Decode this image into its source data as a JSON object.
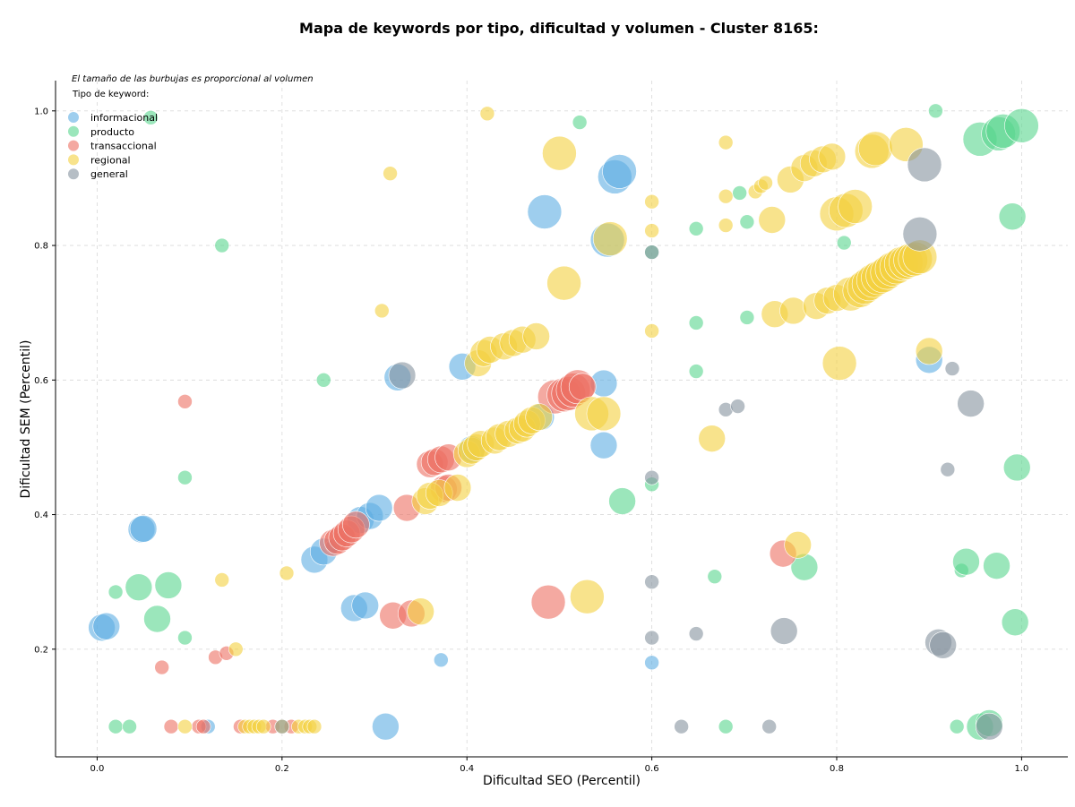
{
  "chart_data": {
    "type": "scatter",
    "title": "Mapa de keywords por tipo, dificultad y volumen - Cluster 8165:",
    "xlabel": "Dificultad SEO (Percentil)",
    "ylabel": "Dificultad SEM (Percentil)",
    "xlim": [
      -0.045,
      1.05
    ],
    "ylim": [
      0.04,
      1.045
    ],
    "xticks": [
      0.0,
      0.2,
      0.4,
      0.6,
      0.8,
      1.0
    ],
    "xtick_labels": [
      "0.0",
      "0.2",
      "0.4",
      "0.6",
      "0.8",
      "1.0"
    ],
    "yticks": [
      0.2,
      0.4,
      0.6,
      0.8,
      1.0
    ],
    "ytick_labels": [
      "0.2",
      "0.4",
      "0.6",
      "0.8",
      "1.0"
    ],
    "grid": true,
    "note": "El tamaño de las burbujas es proporcional al volumen",
    "legend_title": "Tipo de keyword:",
    "legend_position": "top-left",
    "series": [
      {
        "name": "informacional",
        "color": "#5DADE2",
        "points": [
          [
            0.005,
            0.232,
            2
          ],
          [
            0.01,
            0.234,
            2
          ],
          [
            0.048,
            0.378,
            2
          ],
          [
            0.05,
            0.379,
            2
          ],
          [
            0.235,
            0.333,
            2
          ],
          [
            0.245,
            0.345,
            2
          ],
          [
            0.255,
            0.353,
            1
          ],
          [
            0.27,
            0.371,
            1
          ],
          [
            0.285,
            0.392,
            2
          ],
          [
            0.295,
            0.398,
            2
          ],
          [
            0.305,
            0.41,
            2
          ],
          [
            0.278,
            0.261,
            2
          ],
          [
            0.29,
            0.265,
            2
          ],
          [
            0.312,
            0.085,
            2
          ],
          [
            0.325,
            0.604,
            2
          ],
          [
            0.372,
            0.184,
            1
          ],
          [
            0.395,
            0.62,
            2
          ],
          [
            0.405,
            0.497,
            2
          ],
          [
            0.48,
            0.545,
            2
          ],
          [
            0.484,
            0.85,
            3
          ],
          [
            0.548,
            0.595,
            2
          ],
          [
            0.548,
            0.503,
            2
          ],
          [
            0.552,
            0.808,
            3
          ],
          [
            0.56,
            0.902,
            3
          ],
          [
            0.565,
            0.91,
            3
          ],
          [
            0.6,
            0.18,
            1
          ],
          [
            0.9,
            0.63,
            2
          ],
          [
            0.12,
            0.085,
            1
          ]
        ]
      },
      {
        "name": "producto",
        "color": "#58D68D",
        "points": [
          [
            0.02,
            0.285,
            1
          ],
          [
            0.045,
            0.292,
            2
          ],
          [
            0.077,
            0.295,
            2
          ],
          [
            0.065,
            0.245,
            2
          ],
          [
            0.02,
            0.085,
            1
          ],
          [
            0.035,
            0.085,
            1
          ],
          [
            0.058,
            0.99,
            1
          ],
          [
            0.095,
            0.455,
            1
          ],
          [
            0.095,
            0.217,
            1
          ],
          [
            0.135,
            0.8,
            1
          ],
          [
            0.245,
            0.6,
            1
          ],
          [
            0.522,
            0.983,
            1
          ],
          [
            0.568,
            0.42,
            2
          ],
          [
            0.6,
            0.445,
            1
          ],
          [
            0.6,
            0.79,
            1
          ],
          [
            0.648,
            0.825,
            1
          ],
          [
            0.648,
            0.613,
            1
          ],
          [
            0.648,
            0.685,
            1
          ],
          [
            0.668,
            0.308,
            1
          ],
          [
            0.68,
            0.085,
            1
          ],
          [
            0.695,
            0.878,
            1
          ],
          [
            0.703,
            0.835,
            1
          ],
          [
            0.703,
            0.693,
            1
          ],
          [
            0.765,
            0.322,
            2
          ],
          [
            0.808,
            0.804,
            1
          ],
          [
            0.907,
            1.0,
            1
          ],
          [
            0.93,
            0.085,
            1
          ],
          [
            0.935,
            0.317,
            1
          ],
          [
            0.94,
            0.33,
            2
          ],
          [
            0.955,
            0.958,
            3
          ],
          [
            0.955,
            0.085,
            2
          ],
          [
            0.965,
            0.09,
            2
          ],
          [
            0.973,
            0.324,
            2
          ],
          [
            0.975,
            0.966,
            3
          ],
          [
            0.98,
            0.97,
            3
          ],
          [
            0.99,
            0.843,
            2
          ],
          [
            0.993,
            0.24,
            2
          ],
          [
            0.995,
            0.47,
            2
          ],
          [
            1.0,
            0.978,
            3
          ]
        ]
      },
      {
        "name": "transaccional",
        "color": "#EC7063",
        "points": [
          [
            0.07,
            0.173,
            1
          ],
          [
            0.08,
            0.085,
            1
          ],
          [
            0.095,
            0.568,
            1
          ],
          [
            0.11,
            0.085,
            1
          ],
          [
            0.115,
            0.085,
            1
          ],
          [
            0.128,
            0.188,
            1
          ],
          [
            0.14,
            0.194,
            1
          ],
          [
            0.155,
            0.085,
            1
          ],
          [
            0.19,
            0.085,
            1
          ],
          [
            0.21,
            0.085,
            1
          ],
          [
            0.255,
            0.358,
            2
          ],
          [
            0.26,
            0.361,
            2
          ],
          [
            0.265,
            0.366,
            2
          ],
          [
            0.27,
            0.372,
            2
          ],
          [
            0.275,
            0.378,
            2
          ],
          [
            0.28,
            0.385,
            2
          ],
          [
            0.32,
            0.25,
            2
          ],
          [
            0.335,
            0.41,
            2
          ],
          [
            0.34,
            0.253,
            2
          ],
          [
            0.36,
            0.475,
            2
          ],
          [
            0.365,
            0.478,
            2
          ],
          [
            0.372,
            0.482,
            2
          ],
          [
            0.375,
            0.438,
            2
          ],
          [
            0.38,
            0.485,
            2
          ],
          [
            0.38,
            0.44,
            2
          ],
          [
            0.488,
            0.27,
            3
          ],
          [
            0.495,
            0.575,
            3
          ],
          [
            0.505,
            0.578,
            3
          ],
          [
            0.51,
            0.58,
            3
          ],
          [
            0.515,
            0.585,
            3
          ],
          [
            0.52,
            0.59,
            3
          ],
          [
            0.525,
            0.59,
            2
          ],
          [
            0.742,
            0.342,
            2
          ]
        ]
      },
      {
        "name": "regional",
        "color": "#F4D03F",
        "points": [
          [
            0.095,
            0.085,
            1
          ],
          [
            0.135,
            0.303,
            1
          ],
          [
            0.15,
            0.2,
            1
          ],
          [
            0.16,
            0.085,
            1
          ],
          [
            0.165,
            0.085,
            1
          ],
          [
            0.17,
            0.085,
            1
          ],
          [
            0.175,
            0.085,
            1
          ],
          [
            0.18,
            0.085,
            1
          ],
          [
            0.2,
            0.085,
            1
          ],
          [
            0.205,
            0.313,
            1
          ],
          [
            0.218,
            0.085,
            1
          ],
          [
            0.225,
            0.085,
            1
          ],
          [
            0.23,
            0.085,
            1
          ],
          [
            0.235,
            0.085,
            1
          ],
          [
            0.308,
            0.703,
            1
          ],
          [
            0.317,
            0.907,
            1
          ],
          [
            0.35,
            0.256,
            2
          ],
          [
            0.355,
            0.42,
            2
          ],
          [
            0.36,
            0.428,
            2
          ],
          [
            0.37,
            0.432,
            2
          ],
          [
            0.39,
            0.44,
            2
          ],
          [
            0.4,
            0.49,
            2
          ],
          [
            0.405,
            0.495,
            2
          ],
          [
            0.41,
            0.5,
            2
          ],
          [
            0.415,
            0.505,
            2
          ],
          [
            0.412,
            0.625,
            2
          ],
          [
            0.418,
            0.64,
            2
          ],
          [
            0.422,
            0.996,
            1
          ],
          [
            0.425,
            0.645,
            2
          ],
          [
            0.43,
            0.51,
            2
          ],
          [
            0.435,
            0.515,
            2
          ],
          [
            0.44,
            0.65,
            2
          ],
          [
            0.445,
            0.52,
            2
          ],
          [
            0.45,
            0.655,
            2
          ],
          [
            0.455,
            0.525,
            2
          ],
          [
            0.46,
            0.528,
            2
          ],
          [
            0.46,
            0.66,
            2
          ],
          [
            0.465,
            0.535,
            2
          ],
          [
            0.47,
            0.54,
            2
          ],
          [
            0.475,
            0.665,
            2
          ],
          [
            0.478,
            0.545,
            2
          ],
          [
            0.5,
            0.937,
            3
          ],
          [
            0.505,
            0.744,
            3
          ],
          [
            0.53,
            0.278,
            3
          ],
          [
            0.535,
            0.55,
            3
          ],
          [
            0.548,
            0.55,
            3
          ],
          [
            0.555,
            0.81,
            3
          ],
          [
            0.6,
            0.865,
            1
          ],
          [
            0.6,
            0.822,
            1
          ],
          [
            0.6,
            0.673,
            1
          ],
          [
            0.665,
            0.513,
            2
          ],
          [
            0.68,
            0.953,
            1
          ],
          [
            0.68,
            0.873,
            1
          ],
          [
            0.68,
            0.83,
            1
          ],
          [
            0.712,
            0.88,
            1
          ],
          [
            0.718,
            0.888,
            1
          ],
          [
            0.723,
            0.893,
            1
          ],
          [
            0.73,
            0.838,
            2
          ],
          [
            0.733,
            0.698,
            2
          ],
          [
            0.75,
            0.898,
            2
          ],
          [
            0.753,
            0.703,
            2
          ],
          [
            0.758,
            0.355,
            2
          ],
          [
            0.765,
            0.915,
            2
          ],
          [
            0.775,
            0.922,
            2
          ],
          [
            0.778,
            0.71,
            2
          ],
          [
            0.785,
            0.928,
            2
          ],
          [
            0.79,
            0.718,
            2
          ],
          [
            0.795,
            0.932,
            2
          ],
          [
            0.8,
            0.722,
            2
          ],
          [
            0.8,
            0.847,
            3
          ],
          [
            0.803,
            0.625,
            3
          ],
          [
            0.81,
            0.852,
            3
          ],
          [
            0.815,
            0.728,
            3
          ],
          [
            0.82,
            0.858,
            3
          ],
          [
            0.825,
            0.733,
            3
          ],
          [
            0.83,
            0.738,
            3
          ],
          [
            0.835,
            0.743,
            3
          ],
          [
            0.838,
            0.94,
            3
          ],
          [
            0.84,
            0.748,
            3
          ],
          [
            0.842,
            0.944,
            3
          ],
          [
            0.845,
            0.752,
            3
          ],
          [
            0.85,
            0.755,
            3
          ],
          [
            0.855,
            0.76,
            3
          ],
          [
            0.86,
            0.765,
            3
          ],
          [
            0.865,
            0.768,
            3
          ],
          [
            0.87,
            0.773,
            3
          ],
          [
            0.875,
            0.775,
            3
          ],
          [
            0.875,
            0.95,
            3
          ],
          [
            0.88,
            0.778,
            3
          ],
          [
            0.885,
            0.78,
            3
          ],
          [
            0.89,
            0.783,
            3
          ],
          [
            0.9,
            0.643,
            2
          ]
        ]
      },
      {
        "name": "general",
        "color": "#85929E",
        "points": [
          [
            0.2,
            0.085,
            1
          ],
          [
            0.33,
            0.607,
            2
          ],
          [
            0.6,
            0.455,
            1
          ],
          [
            0.6,
            0.3,
            1
          ],
          [
            0.6,
            0.217,
            1
          ],
          [
            0.6,
            0.79,
            1
          ],
          [
            0.632,
            0.085,
            1
          ],
          [
            0.648,
            0.223,
            1
          ],
          [
            0.68,
            0.556,
            1
          ],
          [
            0.693,
            0.561,
            1
          ],
          [
            0.727,
            0.085,
            1
          ],
          [
            0.743,
            0.227,
            2
          ],
          [
            0.89,
            0.817,
            3
          ],
          [
            0.895,
            0.92,
            3
          ],
          [
            0.91,
            0.21,
            2
          ],
          [
            0.915,
            0.206,
            2
          ],
          [
            0.92,
            0.467,
            1
          ],
          [
            0.925,
            0.617,
            1
          ],
          [
            0.945,
            0.565,
            2
          ],
          [
            0.965,
            0.085,
            2
          ]
        ]
      }
    ]
  }
}
